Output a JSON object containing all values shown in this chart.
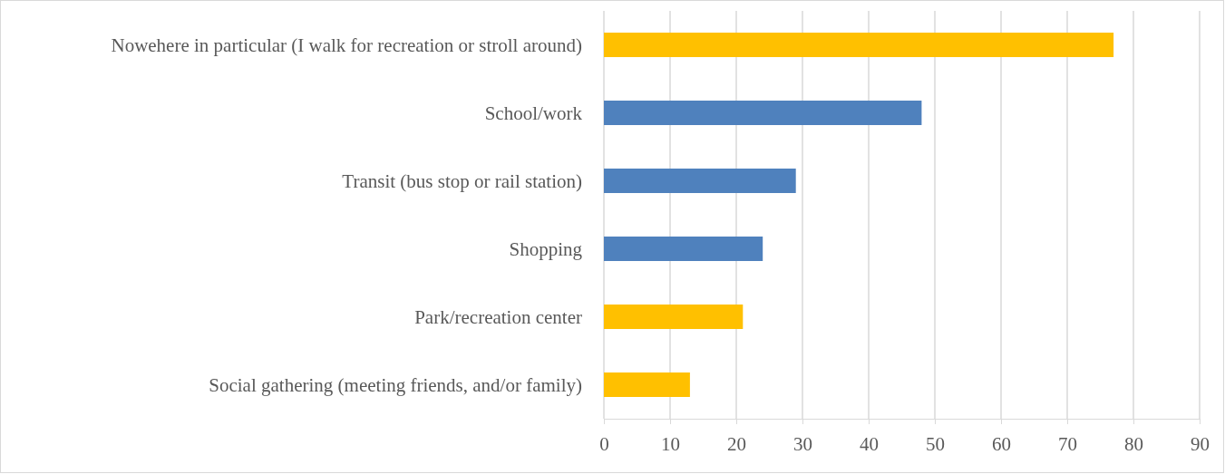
{
  "chart_data": {
    "type": "bar",
    "orientation": "horizontal",
    "categories": [
      "Nowehere in particular (I walk for recreation or stroll around)",
      "School/work",
      "Transit (bus stop or rail station)",
      "Shopping",
      "Park/recreation center",
      "Social gathering (meeting friends, and/or family)"
    ],
    "values": [
      77,
      48,
      29,
      24,
      21,
      13
    ],
    "colors": [
      "#ffc000",
      "#4f81bd",
      "#4f81bd",
      "#4f81bd",
      "#ffc000",
      "#ffc000"
    ],
    "xlim": [
      0,
      90
    ],
    "xticks": [
      0,
      10,
      20,
      30,
      40,
      50,
      60,
      70,
      80,
      90
    ],
    "grid": "x"
  }
}
